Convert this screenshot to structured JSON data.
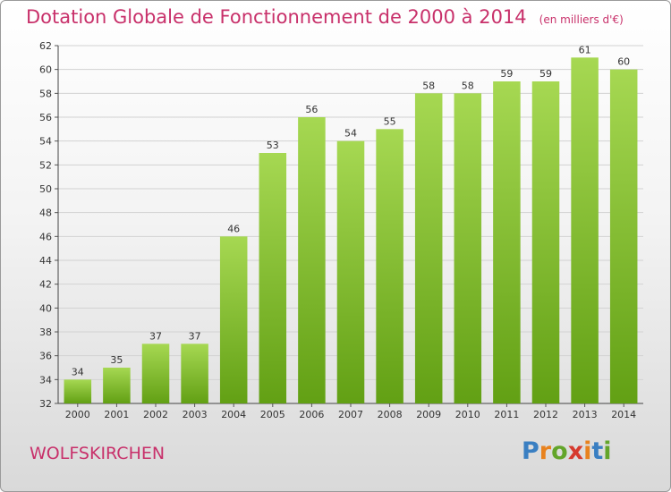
{
  "header": {
    "title": "Dotation Globale de Fonctionnement de 2000 à 2014",
    "unit": "(en milliers d'€)"
  },
  "commune": "WOLFSKIRCHEN",
  "logo": {
    "letters": [
      "P",
      "r",
      "o",
      "x",
      "i",
      "t",
      "i"
    ]
  },
  "colors": {
    "title": "#c8306a",
    "bar_light": "#a6d852",
    "bar_dark": "#62a014",
    "logo": [
      "#3a7fc2",
      "#e8821e",
      "#63a52a",
      "#d63a2e",
      "#e8821e",
      "#3a7fc2",
      "#63a52a"
    ]
  },
  "chart_data": {
    "type": "bar",
    "title": "Dotation Globale de Fonctionnement de 2000 à 2014",
    "xlabel": "",
    "ylabel": "en milliers d'€",
    "categories": [
      "2000",
      "2001",
      "2002",
      "2003",
      "2004",
      "2005",
      "2006",
      "2007",
      "2008",
      "2009",
      "2010",
      "2011",
      "2012",
      "2013",
      "2014"
    ],
    "values": [
      34,
      35,
      37,
      37,
      46,
      53,
      56,
      54,
      55,
      58,
      58,
      59,
      59,
      61,
      60
    ],
    "ylim": [
      32,
      62
    ],
    "yticks": [
      32,
      34,
      36,
      38,
      40,
      42,
      44,
      46,
      48,
      50,
      52,
      54,
      56,
      58,
      60,
      62
    ],
    "grid": true
  }
}
